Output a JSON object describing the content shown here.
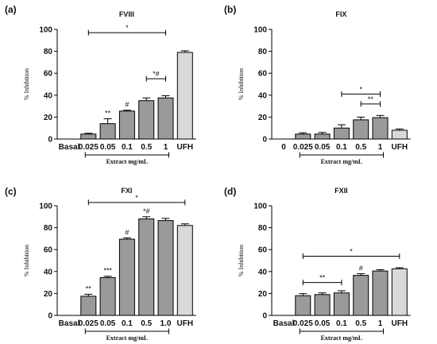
{
  "chart_data": [
    {
      "panel": "(a)",
      "type": "bar",
      "title": "FVIII",
      "ylabel": "% Inhibition",
      "xlabel": "Extract mg/mL",
      "ylim": [
        0,
        100
      ],
      "yticks": [
        0,
        20,
        40,
        60,
        80,
        100
      ],
      "categories": [
        "Basal",
        "0.025",
        "0.05",
        "0.1",
        "0.5",
        "1",
        "UFH"
      ],
      "values": [
        0,
        4.5,
        14,
        25.5,
        35,
        37.5,
        79
      ],
      "errors": [
        0,
        0.8,
        4.5,
        0.8,
        2.5,
        2,
        1.5
      ],
      "labels": [
        "",
        "",
        "**",
        "#",
        "",
        "",
        ""
      ],
      "brackets": [
        {
          "from": "0.025",
          "to": "1",
          "y": 97,
          "label": "*"
        },
        {
          "from": "0.5",
          "to": "1",
          "y": 55,
          "label": "*#"
        }
      ],
      "group_bracket": {
        "from": "0.025",
        "to": "1"
      }
    },
    {
      "panel": "(b)",
      "type": "bar",
      "title": "FIX",
      "ylabel": "% Inhibition",
      "xlabel": "Extract mg/mL",
      "ylim": [
        0,
        100
      ],
      "yticks": [
        0,
        20,
        40,
        60,
        80,
        100
      ],
      "categories": [
        "0",
        "0.025",
        "0.05",
        "0.1",
        "0.5",
        "1",
        "UFH"
      ],
      "values": [
        0,
        4.5,
        4.5,
        10,
        17.5,
        19.5,
        8
      ],
      "errors": [
        0,
        1.2,
        1.5,
        3,
        2.5,
        2,
        1.2
      ],
      "labels": [
        "",
        "",
        "",
        "",
        "",
        "",
        ""
      ],
      "brackets": [
        {
          "from": "0.1",
          "to": "1",
          "y": 41,
          "label": "*"
        },
        {
          "from": "0.5",
          "to": "1",
          "y": 32,
          "label": "**"
        }
      ],
      "group_bracket": {
        "from": "0.025",
        "to": "1"
      }
    },
    {
      "panel": "(c)",
      "type": "bar",
      "title": "FXI",
      "ylabel": "% Inhibition",
      "xlabel": "Extract mg/mL",
      "ylim": [
        0,
        100
      ],
      "yticks": [
        0,
        20,
        40,
        60,
        80,
        100
      ],
      "categories": [
        "Basal",
        "0.025",
        "0.05",
        "0.1",
        "0.5",
        "1.0",
        "UFH"
      ],
      "values": [
        0,
        17.5,
        34.5,
        69.5,
        88,
        86.5,
        82
      ],
      "errors": [
        0,
        1.8,
        1.2,
        1.2,
        2,
        2,
        1.5
      ],
      "labels": [
        "",
        "**",
        "***",
        "#",
        "*#",
        "",
        ""
      ],
      "brackets": [
        {
          "from": "0.025",
          "to": "UFH",
          "y": 103,
          "label": "*"
        }
      ],
      "group_bracket": {
        "from": "0.025",
        "to": "1.0"
      }
    },
    {
      "panel": "(d)",
      "type": "bar",
      "title": "FXII",
      "ylabel": "% Inhibition",
      "xlabel": "Extract mg/mL",
      "ylim": [
        0,
        100
      ],
      "yticks": [
        0,
        20,
        40,
        60,
        80,
        100
      ],
      "categories": [
        "Basal",
        "0.025",
        "0.05",
        "0.1",
        "0.5",
        "1",
        "UFH"
      ],
      "values": [
        0,
        18,
        19,
        20.5,
        36.5,
        40.5,
        42.5
      ],
      "errors": [
        0,
        1.8,
        1.5,
        2,
        1.5,
        1.2,
        1
      ],
      "labels": [
        "",
        "",
        "",
        "",
        "#",
        "",
        ""
      ],
      "brackets": [
        {
          "from": "0.025",
          "to": "UFH",
          "y": 54,
          "label": "*"
        },
        {
          "from": "0.025",
          "to": "0.1",
          "y": 30,
          "label": "**"
        }
      ],
      "group_bracket": {
        "from": "0.025",
        "to": "1"
      }
    }
  ],
  "colors": {
    "bar": "#9a9a9a",
    "control_bar": "#d9d9d9",
    "stroke": "#000000"
  }
}
